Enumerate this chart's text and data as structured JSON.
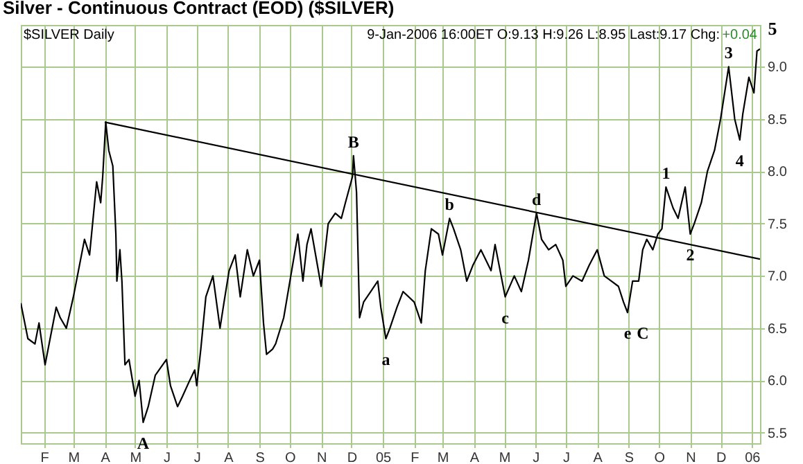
{
  "chart_data": {
    "type": "line",
    "title": "Silver - Continuous Contract (EOD) ($SILVER)",
    "annotations": [
      "$SILVER Daily",
      "9-Jan-2006 16:00ET O:9.13 H:9.26 L:8.95 Last:9.17 Chg:",
      "+0.04",
      "5",
      {
        "text": "A",
        "x": "2004-05-09",
        "y": 5.6
      },
      {
        "text": "B",
        "x": "2004-12-03",
        "y": 8.15
      },
      {
        "text": "a",
        "x": "2005-01-04",
        "y": 6.4
      },
      {
        "text": "b",
        "x": "2005-03-08",
        "y": 7.55
      },
      {
        "text": "c",
        "x": "2005-05-02",
        "y": 6.8
      },
      {
        "text": "d",
        "x": "2005-06-02",
        "y": 7.6
      },
      {
        "text": "e",
        "x": "2005-08-31",
        "y": 6.65
      },
      {
        "text": "C",
        "x": "2005-08-31",
        "y": 6.65
      },
      {
        "text": "1",
        "x": "2005-10-08",
        "y": 7.85
      },
      {
        "text": "2",
        "x": "2005-11-01",
        "y": 7.4
      },
      {
        "text": "3",
        "x": "2005-12-09",
        "y": 9.0
      },
      {
        "text": "4",
        "x": "2005-12-20",
        "y": 8.3
      }
    ],
    "series": [
      {
        "color": "#000000",
        "x": [
          "2004-01-09",
          "2004-01-16",
          "2004-01-23",
          "2004-01-27",
          "2004-02-02",
          "2004-02-06",
          "2004-02-13",
          "2004-02-17",
          "2004-02-23",
          "2004-03-01",
          "2004-03-05",
          "2004-03-12",
          "2004-03-17",
          "2004-03-24",
          "2004-03-28",
          "2004-03-30",
          "2004-04-02",
          "2004-04-05",
          "2004-04-09",
          "2004-04-12",
          "2004-04-13",
          "2004-04-16",
          "2004-04-18",
          "2004-04-21",
          "2004-04-25",
          "2004-05-01",
          "2004-05-05",
          "2004-05-09",
          "2004-05-14",
          "2004-05-21",
          "2004-06-01",
          "2004-06-05",
          "2004-06-12",
          "2004-06-17",
          "2004-06-24",
          "2004-06-29",
          "2004-07-01",
          "2004-07-05",
          "2004-07-10",
          "2004-07-17",
          "2004-07-24",
          "2004-07-28",
          "2004-08-02",
          "2004-08-08",
          "2004-08-13",
          "2004-08-20",
          "2004-08-26",
          "2004-09-01",
          "2004-09-05",
          "2004-09-08",
          "2004-09-14",
          "2004-09-17",
          "2004-09-25",
          "2004-10-02",
          "2004-10-09",
          "2004-10-14",
          "2004-10-18",
          "2004-10-22",
          "2004-11-01",
          "2004-11-08",
          "2004-11-15",
          "2004-11-21",
          "2004-11-25",
          "2004-12-02",
          "2004-12-03",
          "2004-12-06",
          "2004-12-09",
          "2004-12-13",
          "2004-12-20",
          "2004-12-27",
          "2004-12-30",
          "2005-01-04",
          "2005-01-08",
          "2005-01-15",
          "2005-01-21",
          "2005-02-01",
          "2005-02-08",
          "2005-02-12",
          "2005-02-18",
          "2005-02-25",
          "2005-03-01",
          "2005-03-08",
          "2005-03-12",
          "2005-03-19",
          "2005-03-25",
          "2005-03-31",
          "2005-04-08",
          "2005-04-18",
          "2005-04-22",
          "2005-05-02",
          "2005-05-11",
          "2005-05-18",
          "2005-05-25",
          "2005-06-02",
          "2005-06-07",
          "2005-06-14",
          "2005-06-21",
          "2005-06-28",
          "2005-07-01",
          "2005-07-08",
          "2005-07-17",
          "2005-07-24",
          "2005-08-01",
          "2005-08-08",
          "2005-08-15",
          "2005-08-22",
          "2005-08-27",
          "2005-08-31",
          "2005-09-05",
          "2005-09-11",
          "2005-09-15",
          "2005-09-19",
          "2005-09-25",
          "2005-09-30",
          "2005-10-04",
          "2005-10-08",
          "2005-10-15",
          "2005-10-20",
          "2005-10-27",
          "2005-11-01",
          "2005-11-05",
          "2005-11-12",
          "2005-11-18",
          "2005-11-25",
          "2005-12-01",
          "2005-12-09",
          "2005-12-15",
          "2005-12-20",
          "2005-12-23",
          "2005-12-29",
          "2006-01-03",
          "2006-01-06",
          "2006-01-09"
        ],
        "values": [
          6.74,
          6.4,
          6.35,
          6.55,
          6.15,
          6.35,
          6.7,
          6.6,
          6.5,
          6.8,
          7.0,
          7.35,
          7.2,
          7.9,
          7.7,
          7.95,
          8.47,
          8.2,
          8.05,
          7.4,
          6.95,
          7.25,
          6.95,
          6.15,
          6.2,
          5.85,
          6.0,
          5.6,
          5.75,
          6.05,
          6.2,
          5.95,
          5.75,
          5.85,
          6.0,
          6.1,
          5.95,
          6.3,
          6.8,
          7.0,
          6.5,
          6.75,
          7.05,
          7.2,
          6.8,
          7.25,
          7.0,
          7.15,
          6.55,
          6.25,
          6.3,
          6.35,
          6.6,
          7.0,
          7.4,
          6.95,
          7.3,
          7.45,
          6.9,
          7.5,
          7.6,
          7.55,
          7.7,
          7.95,
          8.15,
          7.8,
          6.6,
          6.75,
          6.85,
          6.95,
          6.7,
          6.4,
          6.5,
          6.7,
          6.85,
          6.75,
          6.55,
          7.05,
          7.45,
          7.4,
          7.2,
          7.55,
          7.45,
          7.25,
          6.95,
          7.1,
          7.25,
          7.05,
          7.3,
          6.8,
          7.0,
          6.85,
          7.15,
          7.6,
          7.35,
          7.25,
          7.3,
          7.15,
          6.9,
          7.0,
          6.95,
          7.1,
          7.25,
          7.0,
          6.95,
          6.9,
          6.75,
          6.65,
          6.95,
          6.95,
          7.25,
          7.35,
          7.25,
          7.4,
          7.45,
          7.85,
          7.65,
          7.55,
          7.85,
          7.4,
          7.5,
          7.7,
          8.0,
          8.2,
          8.5,
          9.0,
          8.5,
          8.3,
          8.55,
          8.9,
          8.75,
          9.15,
          9.17
        ]
      },
      {
        "type": "line",
        "color": "#000000",
        "x": [
          "2004-04-01",
          "2006-01-09"
        ],
        "values": [
          8.47,
          7.16
        ]
      }
    ],
    "xlim": [
      "2004-01-09",
      "2006-01-09"
    ],
    "xticks": [
      {
        "value": "2004-02-01",
        "label": "F"
      },
      {
        "value": "2004-03-01",
        "label": "M"
      },
      {
        "value": "2004-04-01",
        "label": "A"
      },
      {
        "value": "2004-05-01",
        "label": "M"
      },
      {
        "value": "2004-06-01",
        "label": "J"
      },
      {
        "value": "2004-07-01",
        "label": "J"
      },
      {
        "value": "2004-08-01",
        "label": "A"
      },
      {
        "value": "2004-09-01",
        "label": "S"
      },
      {
        "value": "2004-10-01",
        "label": "O"
      },
      {
        "value": "2004-11-01",
        "label": "N"
      },
      {
        "value": "2004-12-01",
        "label": "D"
      },
      {
        "value": "2005-01-01",
        "label": "05"
      },
      {
        "value": "2005-02-01",
        "label": "F"
      },
      {
        "value": "2005-03-01",
        "label": "M"
      },
      {
        "value": "2005-04-01",
        "label": "A"
      },
      {
        "value": "2005-05-01",
        "label": "M"
      },
      {
        "value": "2005-06-01",
        "label": "J"
      },
      {
        "value": "2005-07-01",
        "label": "J"
      },
      {
        "value": "2005-08-01",
        "label": "A"
      },
      {
        "value": "2005-09-01",
        "label": "S"
      },
      {
        "value": "2005-10-01",
        "label": "O"
      },
      {
        "value": "2005-11-01",
        "label": "N"
      },
      {
        "value": "2005-12-01",
        "label": "D"
      },
      {
        "value": "2006-01-01",
        "label": "06"
      }
    ],
    "ylim": [
      5.4,
      9.4
    ],
    "yticks": [
      {
        "value": 5.5,
        "label": "5.5"
      },
      {
        "value": 6,
        "label": "6.0"
      },
      {
        "value": 6.5,
        "label": "6.5"
      },
      {
        "value": 7,
        "label": "7.0"
      },
      {
        "value": 7.5,
        "label": "7.5"
      },
      {
        "value": 8,
        "label": "8.0"
      },
      {
        "value": 8.5,
        "label": "8.5"
      },
      {
        "value": 9,
        "label": "9.0"
      }
    ],
    "grid": true,
    "marker": "none",
    "line_style": "solid"
  }
}
